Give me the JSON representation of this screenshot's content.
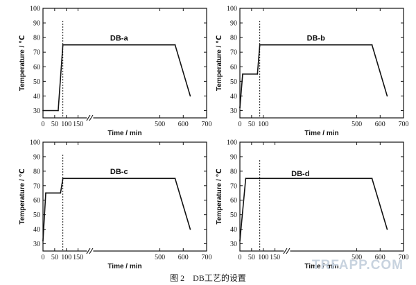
{
  "caption": "图 2　DB工艺的设置",
  "watermark": "TRFAPP.COM",
  "colors": {
    "axis": "#111111",
    "line": "#111111"
  },
  "chart_data": [
    {
      "type": "line",
      "label": "DB-a",
      "xlabel": "Time / min",
      "ylabel": "Temperature / ℃",
      "xlim": [
        0,
        700
      ],
      "ylim": [
        25,
        100
      ],
      "xticks": [
        "0",
        "50",
        "100",
        "150",
        "500",
        "600",
        "700"
      ],
      "yticks": [
        "30",
        "40",
        "50",
        "60",
        "70",
        "80",
        "90",
        "100"
      ],
      "axis_break": "between 150 and 500",
      "dashed_marker": "vertical dashed line at about 85 min",
      "x_positions": [
        0,
        65,
        85,
        565,
        630
      ],
      "values": [
        30,
        30,
        75,
        75,
        40
      ]
    },
    {
      "type": "line",
      "label": "DB-b",
      "xlabel": "Time / min",
      "ylabel": "Temperature / ℃",
      "xlim": [
        0,
        700
      ],
      "ylim": [
        25,
        100
      ],
      "xticks": [
        "0",
        "50",
        "100",
        "500",
        "600",
        "700"
      ],
      "yticks": [
        "30",
        "40",
        "50",
        "60",
        "70",
        "80",
        "90",
        "100"
      ],
      "dashed_marker": "vertical dashed line at about 85 min",
      "x_positions": [
        0,
        12,
        75,
        85,
        565,
        630
      ],
      "values": [
        32,
        55,
        55,
        75,
        75,
        40
      ]
    },
    {
      "type": "line",
      "label": "DB-c",
      "xlabel": "Time / min",
      "ylabel": "Temperature / ℃",
      "xlim": [
        0,
        700
      ],
      "ylim": [
        25,
        100
      ],
      "xticks": [
        "0",
        "50",
        "100",
        "150",
        "500",
        "600",
        "700"
      ],
      "yticks": [
        "30",
        "40",
        "50",
        "60",
        "70",
        "80",
        "90",
        "100"
      ],
      "axis_break": "between 150 and 500",
      "dashed_marker": "vertical dashed line at about 85 min",
      "x_positions": [
        0,
        12,
        75,
        85,
        565,
        630
      ],
      "values": [
        32,
        65,
        65,
        75,
        75,
        40
      ]
    },
    {
      "type": "line",
      "label": "DB-d",
      "xlabel": "Time / min",
      "ylabel": "Temperature / ℃",
      "xlim": [
        0,
        700
      ],
      "ylim": [
        25,
        100
      ],
      "xticks": [
        "0",
        "50",
        "100",
        "150",
        "500",
        "600",
        "700"
      ],
      "yticks": [
        "30",
        "40",
        "50",
        "60",
        "70",
        "80",
        "90",
        "100"
      ],
      "axis_break": "between 150 and 500",
      "dashed_marker": "vertical dashed line at about 85 min",
      "x_positions": [
        0,
        25,
        565,
        630
      ],
      "values": [
        32,
        75,
        75,
        40
      ]
    }
  ]
}
